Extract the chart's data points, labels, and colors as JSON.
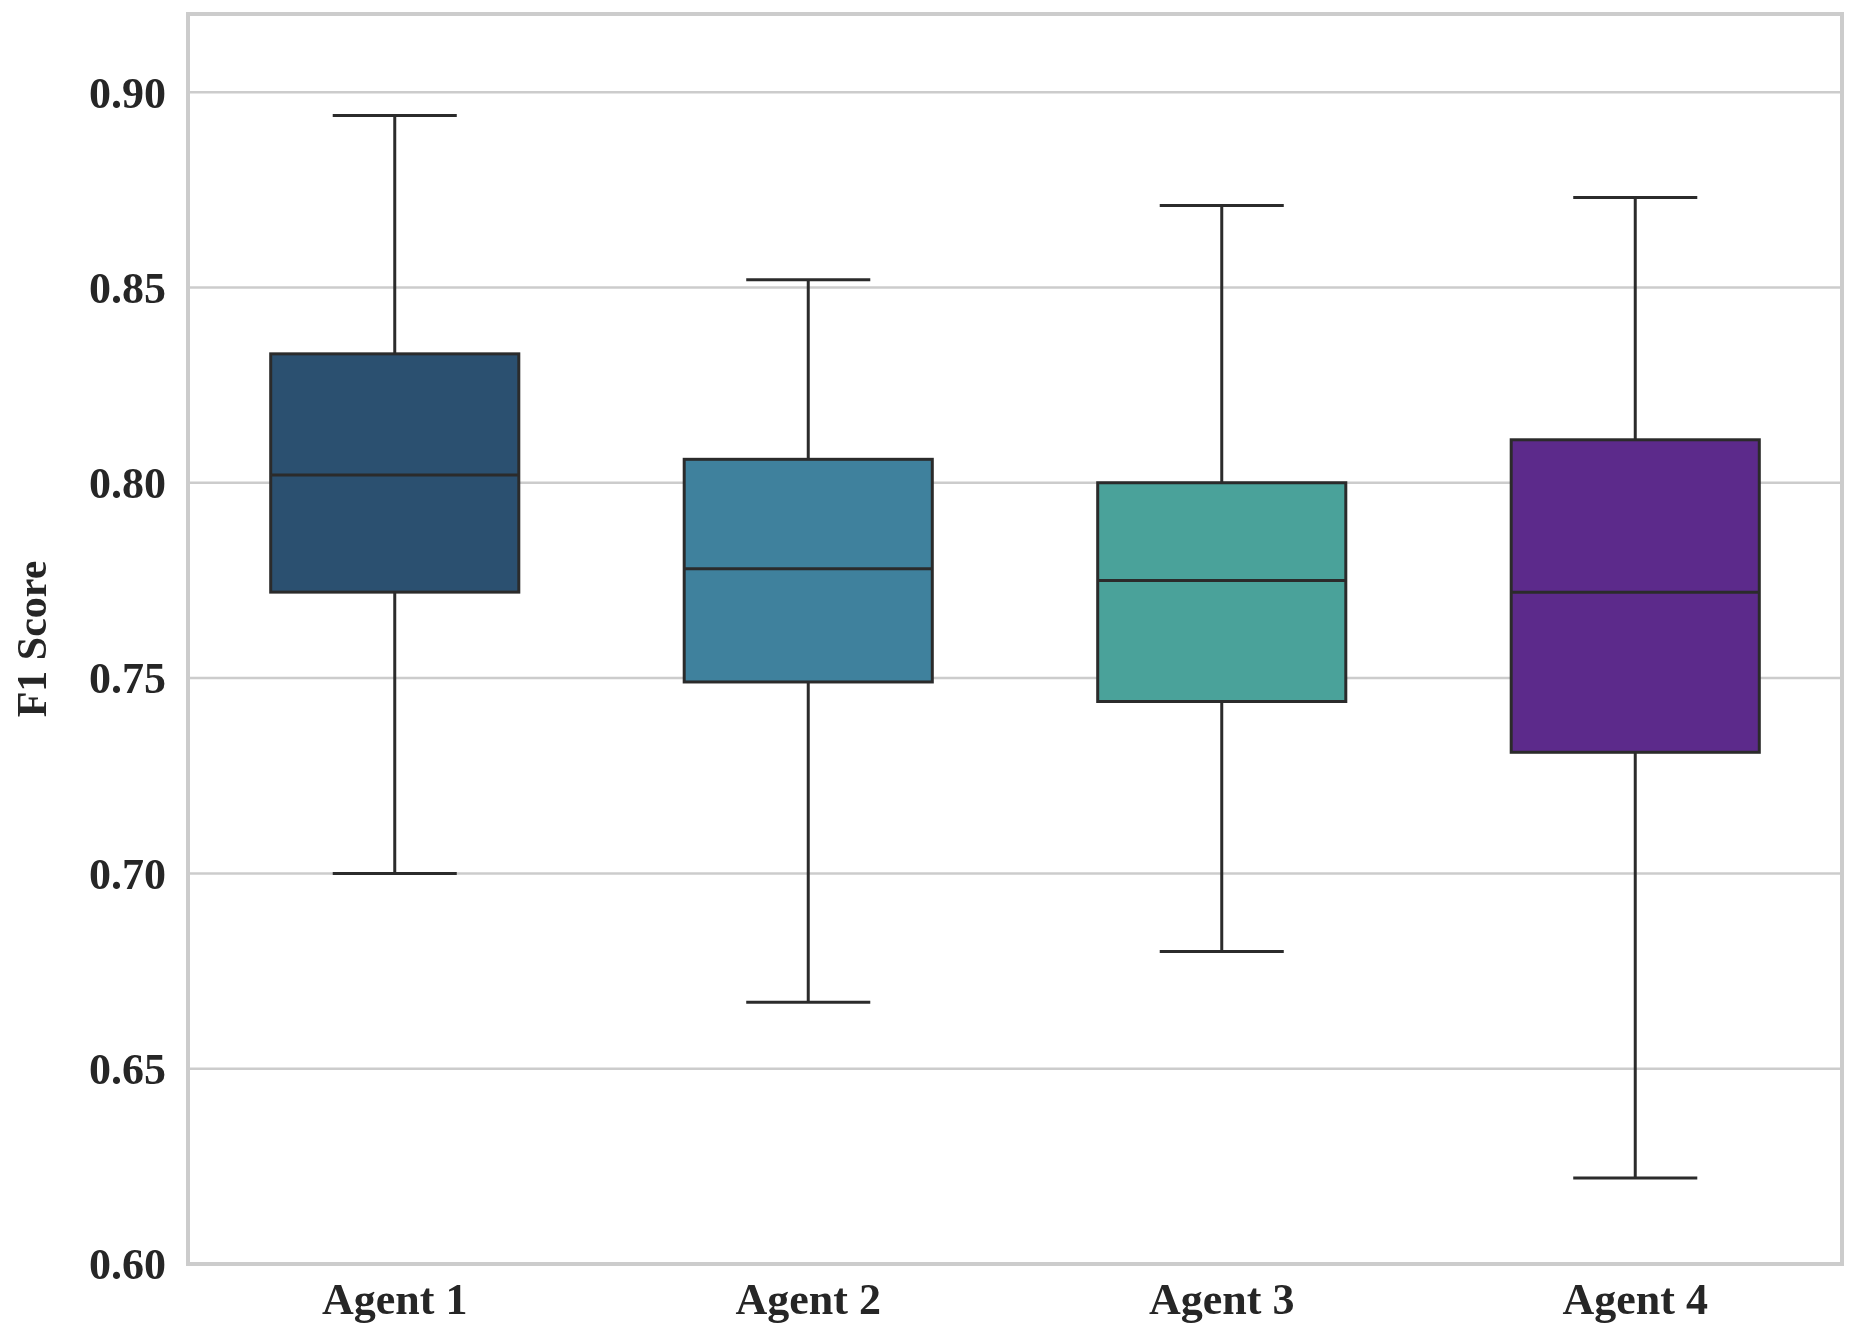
{
  "chart_data": {
    "type": "box",
    "ylabel": "F1 Score",
    "categories": [
      "Agent 1",
      "Agent 2",
      "Agent 3",
      "Agent 4"
    ],
    "colors": [
      "#2b5070",
      "#3f819d",
      "#4aa29a",
      "#5c2a8b"
    ],
    "boxes": [
      {
        "low": 0.7,
        "q1": 0.772,
        "median": 0.802,
        "q3": 0.833,
        "high": 0.894
      },
      {
        "low": 0.667,
        "q1": 0.749,
        "median": 0.778,
        "q3": 0.806,
        "high": 0.852
      },
      {
        "low": 0.68,
        "q1": 0.744,
        "median": 0.775,
        "q3": 0.8,
        "high": 0.871
      },
      {
        "low": 0.622,
        "q1": 0.731,
        "median": 0.772,
        "q3": 0.811,
        "high": 0.873
      }
    ],
    "ylim": [
      0.6,
      0.92
    ],
    "yticks": [
      {
        "value": 0.6,
        "label": "0.60"
      },
      {
        "value": 0.65,
        "label": "0.65"
      },
      {
        "value": 0.7,
        "label": "0.70"
      },
      {
        "value": 0.75,
        "label": "0.75"
      },
      {
        "value": 0.8,
        "label": "0.80"
      },
      {
        "value": 0.85,
        "label": "0.85"
      },
      {
        "value": 0.9,
        "label": "0.90"
      }
    ],
    "grid": "y"
  }
}
